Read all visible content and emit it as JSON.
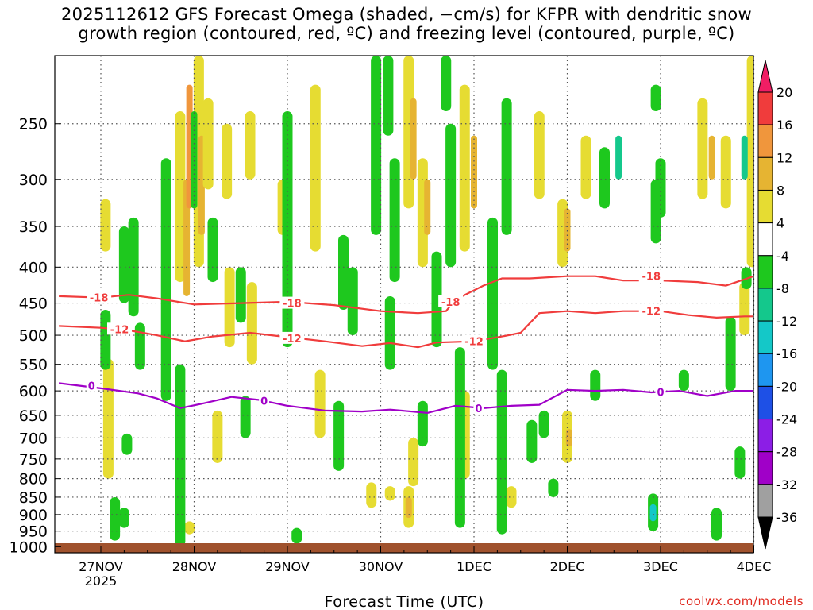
{
  "title_line1": "2025112612 GFS Forecast Omega (shaded, −cm/s) for KFPR with dendritic snow",
  "title_line2": "growth region (contoured, red, ºC) and freezing level (contoured, purple, ºC)",
  "credit": "coolwx.com/models",
  "chart_data": {
    "type": "heatmap",
    "xlabel": "Forecast Time (UTC)",
    "ylabel": "",
    "x_ticks": [
      "27NOV",
      "28NOV",
      "29NOV",
      "30NOV",
      "1DEC",
      "2DEC",
      "3DEC",
      "4DEC"
    ],
    "x_tick_year": "2025",
    "xlim_days": [
      -0.45,
      7.0
    ],
    "y_ticks": [
      250,
      300,
      350,
      400,
      450,
      500,
      550,
      600,
      650,
      700,
      750,
      800,
      850,
      900,
      950,
      1000
    ],
    "ylim_hpa": [
      1020,
      200
    ],
    "y_scale": "log",
    "grid": true,
    "colorbar": {
      "labels": [
        "20",
        "16",
        "12",
        "8",
        "4",
        "-4",
        "-8",
        "-12",
        "-16",
        "-20",
        "-24",
        "-28",
        "-32",
        "-36"
      ],
      "colors": [
        "#f01e64",
        "#f03c3c",
        "#f0963c",
        "#e6b432",
        "#e6dc32",
        "#ffffff",
        "#1ec81e",
        "#14c88c",
        "#14c8c8",
        "#1e96f0",
        "#1e50e6",
        "#8c1ee6",
        "#a000c8",
        "#a0a0a0",
        "#000000"
      ]
    },
    "omega_blobs": [
      {
        "x": 0.85,
        "p0": 240,
        "p1": 420,
        "level": 4
      },
      {
        "x": 0.92,
        "p0": 300,
        "p1": 440,
        "level": 8
      },
      {
        "x": 0.95,
        "p0": 220,
        "p1": 330,
        "level": 12
      },
      {
        "x": 1.05,
        "p0": 200,
        "p1": 400,
        "level": 4
      },
      {
        "x": 1.08,
        "p0": 260,
        "p1": 360,
        "level": 8
      },
      {
        "x": 1.15,
        "p0": 230,
        "p1": 310,
        "level": 4
      },
      {
        "x": 1.35,
        "p0": 250,
        "p1": 320,
        "level": 4
      },
      {
        "x": 1.6,
        "p0": 240,
        "p1": 300,
        "level": 4
      },
      {
        "x": 2.3,
        "p0": 220,
        "p1": 380,
        "level": 4
      },
      {
        "x": 2.35,
        "p0": 560,
        "p1": 700,
        "level": 4
      },
      {
        "x": 3.3,
        "p0": 200,
        "p1": 330,
        "level": 4
      },
      {
        "x": 3.35,
        "p0": 230,
        "p1": 300,
        "level": 8
      },
      {
        "x": 3.45,
        "p0": 280,
        "p1": 400,
        "level": 4
      },
      {
        "x": 3.5,
        "p0": 300,
        "p1": 360,
        "level": 8
      },
      {
        "x": 3.3,
        "p0": 820,
        "p1": 940,
        "level": 4
      },
      {
        "x": 3.3,
        "p0": 850,
        "p1": 910,
        "level": 8
      },
      {
        "x": 3.35,
        "p0": 700,
        "p1": 820,
        "level": 4
      },
      {
        "x": 3.9,
        "p0": 220,
        "p1": 380,
        "level": 4
      },
      {
        "x": 4.0,
        "p0": 260,
        "p1": 330,
        "level": 8
      },
      {
        "x": 3.9,
        "p0": 600,
        "p1": 800,
        "level": 4
      },
      {
        "x": 4.7,
        "p0": 240,
        "p1": 320,
        "level": 4
      },
      {
        "x": 4.95,
        "p0": 320,
        "p1": 400,
        "level": 4
      },
      {
        "x": 5.0,
        "p0": 330,
        "p1": 380,
        "level": 8
      },
      {
        "x": 5.0,
        "p0": 640,
        "p1": 760,
        "level": 4
      },
      {
        "x": 5.2,
        "p0": 260,
        "p1": 320,
        "level": 4
      },
      {
        "x": 6.45,
        "p0": 230,
        "p1": 320,
        "level": 4
      },
      {
        "x": 6.55,
        "p0": 260,
        "p1": 300,
        "level": 8
      },
      {
        "x": 6.7,
        "p0": 260,
        "p1": 330,
        "level": 4
      },
      {
        "x": 6.9,
        "p0": 420,
        "p1": 500,
        "level": 4
      },
      {
        "x": 2.9,
        "p0": 810,
        "p1": 880,
        "level": 4
      },
      {
        "x": 3.1,
        "p0": 820,
        "p1": 860,
        "level": 4
      },
      {
        "x": 4.4,
        "p0": 820,
        "p1": 880,
        "level": 4
      },
      {
        "x": 6.98,
        "p0": 200,
        "p1": 400,
        "level": 4
      },
      {
        "x": 0.95,
        "p0": 920,
        "p1": 960,
        "level": 4
      },
      {
        "x": 1.25,
        "p0": 640,
        "p1": 760,
        "level": 4
      },
      {
        "x": 1.38,
        "p0": 400,
        "p1": 520,
        "level": 4
      },
      {
        "x": 1.62,
        "p0": 420,
        "p1": 550,
        "level": 4
      },
      {
        "x": 1.95,
        "p0": 300,
        "p1": 360,
        "level": 4
      },
      {
        "x": 0.08,
        "p0": 540,
        "p1": 800,
        "level": 4
      },
      {
        "x": 0.05,
        "p0": 320,
        "p1": 380,
        "level": 4
      },
      {
        "x": 5.02,
        "p0": 680,
        "p1": 720,
        "level": 8
      }
    ],
    "omega_blobs_up": [
      {
        "x": 0.7,
        "p0": 280,
        "p1": 620,
        "level": -4
      },
      {
        "x": 0.85,
        "p0": 550,
        "p1": 1000,
        "level": -4
      },
      {
        "x": 0.35,
        "p0": 340,
        "p1": 470,
        "level": -4
      },
      {
        "x": 0.42,
        "p0": 480,
        "p1": 560,
        "level": -4
      },
      {
        "x": 0.25,
        "p0": 350,
        "p1": 450,
        "level": -4
      },
      {
        "x": 1.0,
        "p0": 240,
        "p1": 330,
        "level": -8
      },
      {
        "x": 1.2,
        "p0": 340,
        "p1": 420,
        "level": -4
      },
      {
        "x": 1.5,
        "p0": 400,
        "p1": 480,
        "level": -4
      },
      {
        "x": 1.55,
        "p0": 610,
        "p1": 700,
        "level": -4
      },
      {
        "x": 2.0,
        "p0": 240,
        "p1": 520,
        "level": -4
      },
      {
        "x": 2.55,
        "p0": 620,
        "p1": 780,
        "level": -4
      },
      {
        "x": 2.6,
        "p0": 360,
        "p1": 460,
        "level": -4
      },
      {
        "x": 2.7,
        "p0": 400,
        "p1": 500,
        "level": -4
      },
      {
        "x": 2.95,
        "p0": 200,
        "p1": 360,
        "level": -4
      },
      {
        "x": 3.15,
        "p0": 280,
        "p1": 420,
        "level": -4
      },
      {
        "x": 3.1,
        "p0": 440,
        "p1": 560,
        "level": -4
      },
      {
        "x": 3.45,
        "p0": 620,
        "p1": 720,
        "level": -4
      },
      {
        "x": 3.6,
        "p0": 380,
        "p1": 520,
        "level": -4
      },
      {
        "x": 3.75,
        "p0": 250,
        "p1": 400,
        "level": -4
      },
      {
        "x": 3.85,
        "p0": 520,
        "p1": 940,
        "level": -4
      },
      {
        "x": 4.2,
        "p0": 340,
        "p1": 560,
        "level": -4
      },
      {
        "x": 4.3,
        "p0": 560,
        "p1": 960,
        "level": -4
      },
      {
        "x": 4.35,
        "p0": 230,
        "p1": 360,
        "level": -4
      },
      {
        "x": 4.62,
        "p0": 660,
        "p1": 760,
        "level": -4
      },
      {
        "x": 5.4,
        "p0": 270,
        "p1": 330,
        "level": -4
      },
      {
        "x": 5.55,
        "p0": 260,
        "p1": 300,
        "level": -12
      },
      {
        "x": 5.95,
        "p0": 300,
        "p1": 370,
        "level": -4
      },
      {
        "x": 6.25,
        "p0": 560,
        "p1": 600,
        "level": -4
      },
      {
        "x": 6.0,
        "p0": 280,
        "p1": 340,
        "level": -4
      },
      {
        "x": 5.92,
        "p0": 840,
        "p1": 950,
        "level": -4
      },
      {
        "x": 5.92,
        "p0": 870,
        "p1": 920,
        "level": -16
      },
      {
        "x": 6.6,
        "p0": 880,
        "p1": 980,
        "level": -4
      },
      {
        "x": 6.75,
        "p0": 470,
        "p1": 600,
        "level": -4
      },
      {
        "x": 6.9,
        "p0": 260,
        "p1": 300,
        "level": -12
      },
      {
        "x": 6.92,
        "p0": 400,
        "p1": 430,
        "level": -4
      },
      {
        "x": 6.85,
        "p0": 720,
        "p1": 800,
        "level": -4
      },
      {
        "x": 5.3,
        "p0": 560,
        "p1": 620,
        "level": -4
      },
      {
        "x": 4.75,
        "p0": 640,
        "p1": 700,
        "level": -4
      },
      {
        "x": 4.85,
        "p0": 800,
        "p1": 850,
        "level": -4
      },
      {
        "x": 2.1,
        "p0": 940,
        "p1": 990,
        "level": -4
      },
      {
        "x": 0.15,
        "p0": 850,
        "p1": 980,
        "level": -4
      },
      {
        "x": 0.05,
        "p0": 460,
        "p1": 560,
        "level": -4
      },
      {
        "x": 0.28,
        "p0": 690,
        "p1": 740,
        "level": -4
      },
      {
        "x": 0.25,
        "p0": 880,
        "p1": 940,
        "level": -4
      },
      {
        "x": 5.95,
        "p0": 220,
        "p1": 240,
        "level": -4
      },
      {
        "x": 3.7,
        "p0": 200,
        "p1": 240,
        "level": -4
      },
      {
        "x": 3.08,
        "p0": 200,
        "p1": 260,
        "level": -4
      }
    ],
    "contours": [
      {
        "label": "-18",
        "color": "#f03c3c",
        "x": [
          -0.45,
          0.0,
          0.3,
          0.6,
          1.0,
          1.5,
          2.0,
          2.5,
          3.0,
          3.4,
          3.7,
          3.8,
          4.1,
          4.3,
          4.6,
          5.0,
          5.3,
          5.6,
          6.0,
          6.4,
          6.7,
          7.0
        ],
        "p": [
          440,
          442,
          438,
          443,
          452,
          450,
          448,
          453,
          462,
          465,
          462,
          445,
          425,
          415,
          415,
          412,
          412,
          418,
          418,
          420,
          425,
          412
        ]
      },
      {
        "label": "-12",
        "color": "#f03c3c",
        "x": [
          -0.45,
          0.0,
          0.3,
          0.6,
          0.9,
          1.2,
          1.6,
          2.0,
          2.4,
          2.8,
          3.1,
          3.4,
          3.6,
          4.0,
          4.3,
          4.5,
          4.7,
          5.0,
          5.3,
          5.6,
          6.0,
          6.3,
          6.6,
          6.9,
          7.0
        ],
        "p": [
          485,
          488,
          492,
          500,
          510,
          502,
          496,
          503,
          510,
          518,
          513,
          520,
          512,
          510,
          502,
          496,
          465,
          462,
          465,
          462,
          462,
          468,
          472,
          470,
          470
        ]
      },
      {
        "label": "0",
        "color": "#a000c8",
        "x": [
          -0.45,
          0.0,
          0.4,
          0.6,
          0.85,
          1.1,
          1.4,
          1.7,
          2.0,
          2.4,
          2.8,
          3.1,
          3.5,
          3.8,
          4.1,
          4.4,
          4.7,
          5.0,
          5.3,
          5.6,
          5.9,
          6.2,
          6.5,
          6.8,
          7.0
        ],
        "p": [
          585,
          595,
          605,
          615,
          635,
          625,
          612,
          618,
          630,
          640,
          642,
          638,
          645,
          630,
          635,
          630,
          628,
          598,
          600,
          598,
          603,
          600,
          610,
          600,
          600
        ]
      }
    ],
    "contour_labels": [
      {
        "text": "-18",
        "x": -0.02,
        "p": 442
      },
      {
        "text": "-18",
        "x": 2.05,
        "p": 450
      },
      {
        "text": "-18",
        "x": 3.75,
        "p": 448
      },
      {
        "text": "-18",
        "x": 5.9,
        "p": 412
      },
      {
        "text": "-12",
        "x": 0.2,
        "p": 490
      },
      {
        "text": "-12",
        "x": 2.05,
        "p": 505
      },
      {
        "text": "-12",
        "x": 4.0,
        "p": 510
      },
      {
        "text": "-12",
        "x": 5.9,
        "p": 462
      },
      {
        "text": "0",
        "x": -0.1,
        "p": 590
      },
      {
        "text": "0",
        "x": 1.75,
        "p": 620
      },
      {
        "text": "0",
        "x": 4.05,
        "p": 635
      },
      {
        "text": "0",
        "x": 6.0,
        "p": 602
      }
    ]
  }
}
